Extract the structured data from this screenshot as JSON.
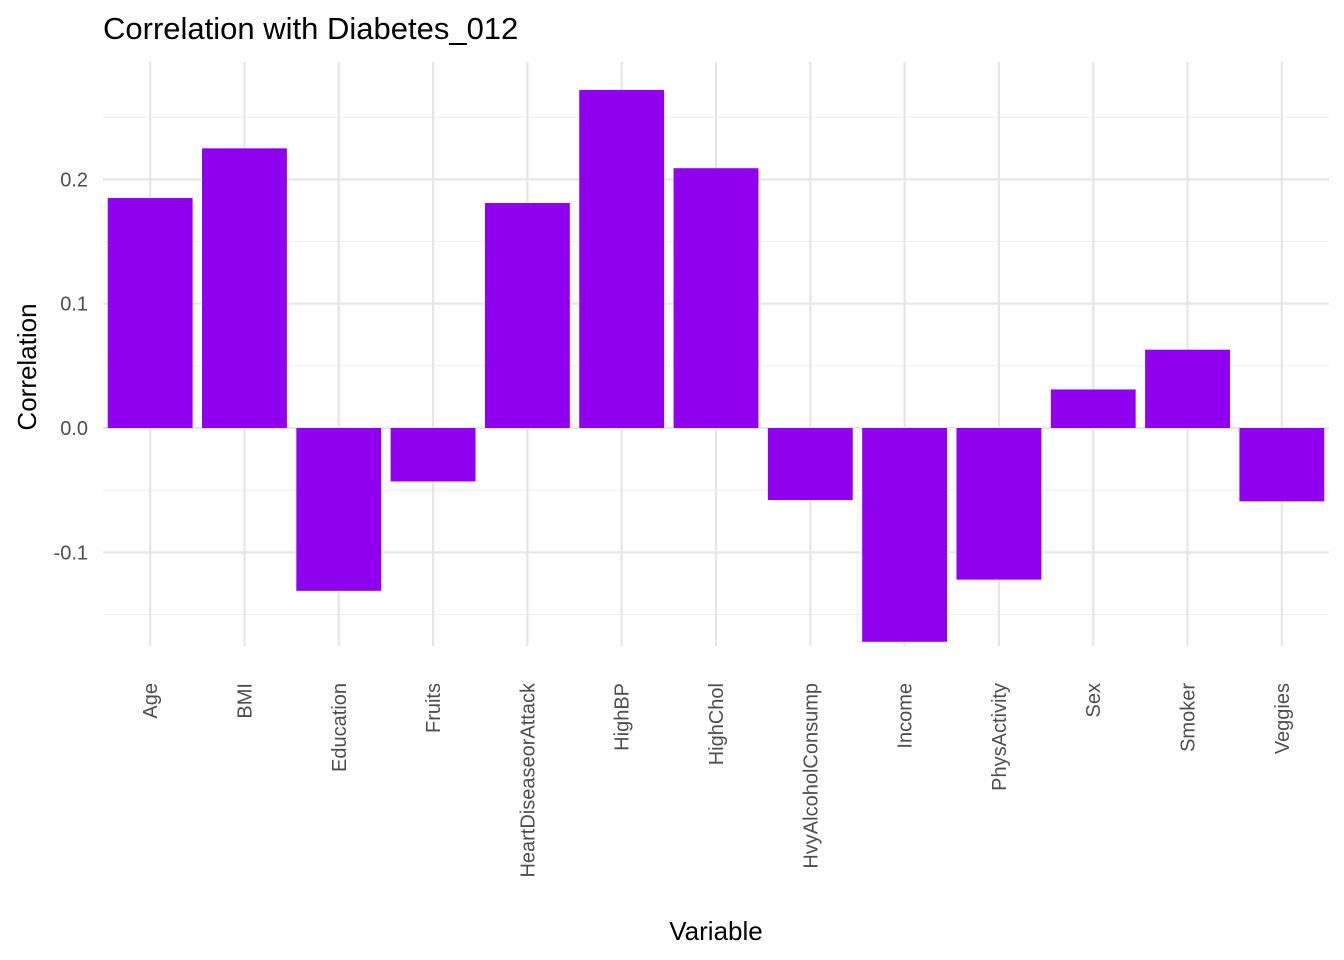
{
  "chart_data": {
    "type": "bar",
    "title": "Correlation with Diabetes_012",
    "xlabel": "Variable",
    "ylabel": "Correlation",
    "categories": [
      "Age",
      "BMI",
      "Education",
      "Fruits",
      "HeartDiseaseorAttack",
      "HighBP",
      "HighChol",
      "HvyAlcoholConsump",
      "Income",
      "PhysActivity",
      "Sex",
      "Smoker",
      "Veggies"
    ],
    "values": [
      0.185,
      0.225,
      -0.131,
      -0.043,
      0.181,
      0.272,
      0.209,
      -0.058,
      -0.172,
      -0.122,
      0.031,
      0.063,
      -0.059
    ],
    "ylim": [
      -0.172,
      0.272
    ],
    "yticks": [
      -0.1,
      0.0,
      0.1,
      0.2
    ],
    "ytick_labels": [
      "-0.1",
      "0.0",
      "0.1",
      "0.2"
    ],
    "bar_color": "#8e00ee",
    "grid": true,
    "legend": "none"
  }
}
